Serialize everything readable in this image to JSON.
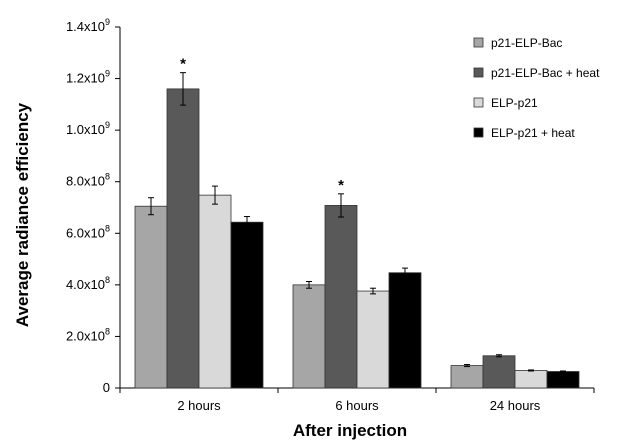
{
  "chart_data": {
    "type": "bar",
    "xlabel": "After injection",
    "ylabel": "Average radiance efficiency",
    "ylim": [
      0,
      1400000000
    ],
    "yticks": [
      0,
      200000000,
      400000000,
      600000000,
      800000000,
      1000000000,
      1200000000,
      1400000000
    ],
    "ytick_labels": [
      {
        "base": "0",
        "exp": ""
      },
      {
        "base": "2.0x10",
        "exp": "8"
      },
      {
        "base": "4.0x10",
        "exp": "8"
      },
      {
        "base": "6.0x10",
        "exp": "8"
      },
      {
        "base": "8.0x10",
        "exp": "8"
      },
      {
        "base": "1.0x10",
        "exp": "9"
      },
      {
        "base": "1.2x10",
        "exp": "9"
      },
      {
        "base": "1.4x10",
        "exp": "9"
      }
    ],
    "categories": [
      "2 hours",
      "6 hours",
      "24 hours"
    ],
    "series": [
      {
        "name": "p21-ELP-Bac",
        "color": "#a6a6a6",
        "values": [
          705000000,
          400000000,
          87000000
        ],
        "errors": [
          33000000,
          13000000,
          4000000
        ]
      },
      {
        "name": "p21-ELP-Bac + heat",
        "color": "#595959",
        "values": [
          1160000000,
          708000000,
          125000000
        ],
        "errors": [
          63000000,
          45000000,
          4000000
        ]
      },
      {
        "name": "ELP-p21",
        "color": "#d9d9d9",
        "values": [
          748000000,
          376000000,
          68000000
        ],
        "errors": [
          35000000,
          11000000,
          2000000
        ]
      },
      {
        "name": "ELP-p21 + heat",
        "color": "#000000",
        "values": [
          643000000,
          447000000,
          64000000
        ],
        "errors": [
          22000000,
          18000000,
          2000000
        ]
      }
    ],
    "annotations": [
      {
        "category": 0,
        "series": 1,
        "text": "*"
      },
      {
        "category": 1,
        "series": 1,
        "text": "*"
      }
    ],
    "legend_position": "top-right",
    "grid": false
  }
}
